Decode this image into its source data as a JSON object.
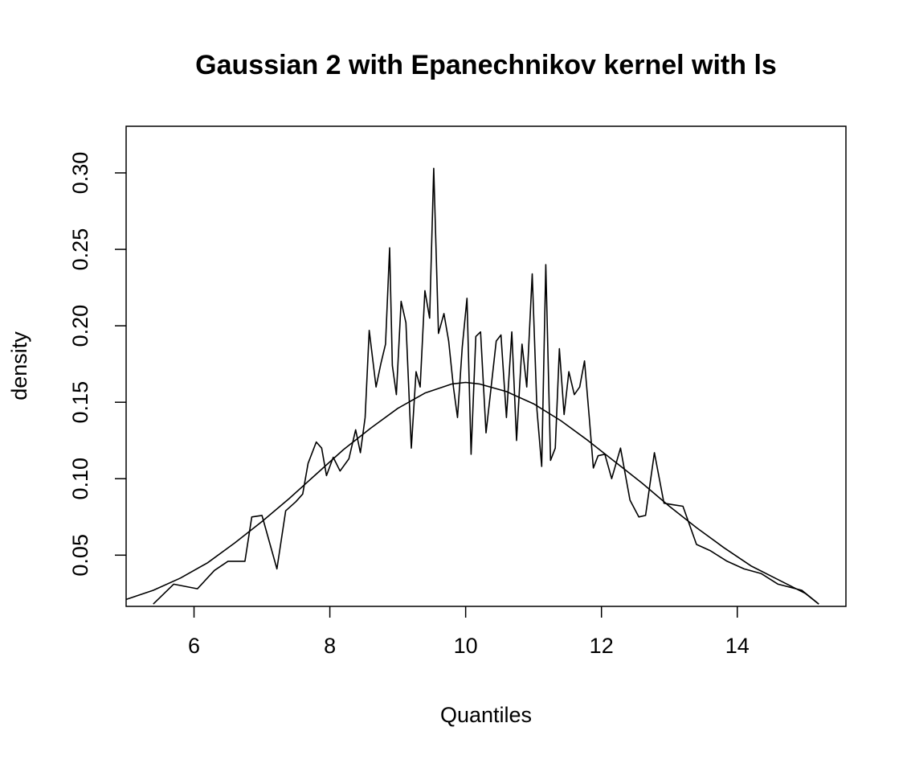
{
  "chart_data": {
    "type": "line",
    "title": "Gaussian 2 with Epanechnikov kernel with ls",
    "xlabel": "Quantiles",
    "ylabel": "density",
    "xlim": [
      5.0,
      15.6
    ],
    "ylim": [
      0.0165,
      0.3305
    ],
    "x_ticks": [
      6,
      8,
      10,
      12,
      14
    ],
    "x_tick_labels": [
      "6",
      "8",
      "10",
      "12",
      "14"
    ],
    "y_ticks": [
      0.05,
      0.1,
      0.15,
      0.2,
      0.25,
      0.3
    ],
    "y_tick_labels": [
      "0.05",
      "0.10",
      "0.15",
      "0.20",
      "0.25",
      "0.30"
    ],
    "grid": false,
    "legend": "none",
    "line_color": "#000000",
    "series": [
      {
        "x": [
          5.4,
          5.7,
          6.05,
          6.3,
          6.5,
          6.75,
          6.85,
          7.0,
          7.22,
          7.35,
          7.5,
          7.6,
          7.68,
          7.8,
          7.88,
          7.95,
          8.05,
          8.15,
          8.28,
          8.38,
          8.45,
          8.52,
          8.58,
          8.68,
          8.75,
          8.82,
          8.88,
          8.92,
          8.98,
          9.05,
          9.12,
          9.2,
          9.27,
          9.33,
          9.4,
          9.47,
          9.53,
          9.6,
          9.68,
          9.75,
          9.82,
          9.88,
          9.95,
          10.02,
          10.08,
          10.15,
          10.22,
          10.3,
          10.38,
          10.45,
          10.52,
          10.6,
          10.68,
          10.75,
          10.83,
          10.9,
          10.98,
          11.05,
          11.12,
          11.18,
          11.25,
          11.32,
          11.38,
          11.45,
          11.52,
          11.6,
          11.68,
          11.75,
          11.82,
          11.88,
          11.95,
          12.05,
          12.15,
          12.28,
          12.42,
          12.55,
          12.65,
          12.78,
          12.92,
          13.05,
          13.2,
          13.4,
          13.6,
          13.85,
          14.1,
          14.35,
          14.6,
          14.95,
          15.2
        ],
        "y": [
          0.018,
          0.031,
          0.028,
          0.04,
          0.046,
          0.046,
          0.075,
          0.076,
          0.041,
          0.079,
          0.085,
          0.09,
          0.11,
          0.124,
          0.12,
          0.102,
          0.114,
          0.105,
          0.113,
          0.132,
          0.117,
          0.14,
          0.197,
          0.16,
          0.175,
          0.188,
          0.251,
          0.174,
          0.155,
          0.216,
          0.202,
          0.12,
          0.17,
          0.16,
          0.223,
          0.205,
          0.303,
          0.195,
          0.208,
          0.19,
          0.16,
          0.14,
          0.186,
          0.218,
          0.116,
          0.193,
          0.196,
          0.13,
          0.162,
          0.19,
          0.194,
          0.14,
          0.196,
          0.125,
          0.188,
          0.16,
          0.234,
          0.145,
          0.108,
          0.24,
          0.112,
          0.12,
          0.185,
          0.142,
          0.17,
          0.155,
          0.16,
          0.177,
          0.14,
          0.107,
          0.115,
          0.116,
          0.1,
          0.12,
          0.086,
          0.075,
          0.076,
          0.117,
          0.084,
          0.083,
          0.082,
          0.057,
          0.053,
          0.046,
          0.041,
          0.038,
          0.031,
          0.027,
          0.018
        ]
      },
      {
        "x": [
          5.0,
          5.4,
          5.8,
          6.2,
          6.6,
          7.0,
          7.4,
          7.8,
          8.2,
          8.6,
          9.0,
          9.4,
          9.8,
          10.0,
          10.2,
          10.6,
          11.0,
          11.4,
          11.8,
          12.2,
          12.6,
          13.0,
          13.4,
          13.8,
          14.2,
          14.6,
          15.0,
          15.2
        ],
        "y": [
          0.021,
          0.027,
          0.035,
          0.045,
          0.058,
          0.072,
          0.087,
          0.103,
          0.119,
          0.133,
          0.146,
          0.156,
          0.162,
          0.163,
          0.162,
          0.157,
          0.149,
          0.138,
          0.125,
          0.111,
          0.097,
          0.082,
          0.068,
          0.055,
          0.043,
          0.034,
          0.025,
          0.018
        ]
      }
    ]
  }
}
